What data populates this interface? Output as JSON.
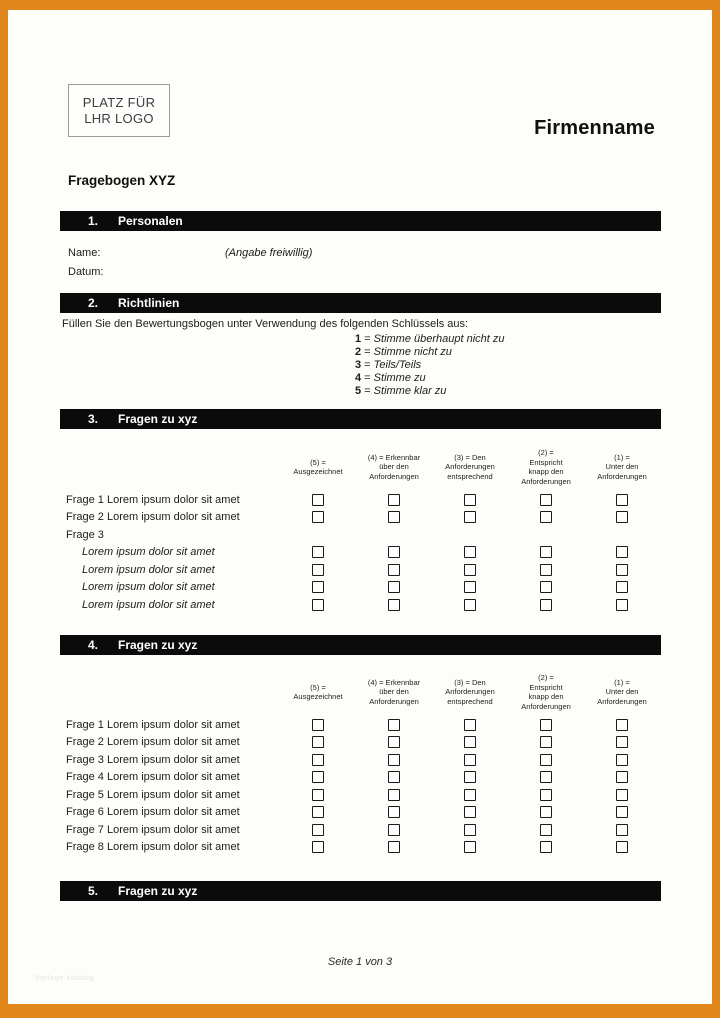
{
  "page": {
    "logo": {
      "line1": "PLATZ FÜR",
      "line2": "LHR LOGO"
    },
    "company_name": "Firmenname",
    "form_title": "Fragebogen XYZ",
    "footer_page_indicator": "Seite 1 von 3",
    "watermark": "Vorlage katalog",
    "colors": {
      "border_orange": "#E0861B",
      "section_bar": "#0B0B0B",
      "page_background": "#FDFDFA"
    }
  },
  "rating_columns": [
    {
      "lines": [
        "(5) =",
        "Ausgezeichnet"
      ]
    },
    {
      "lines": [
        "(4) = Erkennbar",
        "über den",
        "Anforderungen"
      ]
    },
    {
      "lines": [
        "(3) = Den",
        "Anforderungen",
        "entsprechend"
      ]
    },
    {
      "lines": [
        "(2) =",
        "Entspricht",
        "knapp den",
        "Anforderungen"
      ]
    },
    {
      "lines": [
        "(1) =",
        "Unter den",
        "Anforderungen"
      ]
    }
  ],
  "sections": {
    "personalen": {
      "number": "1.",
      "title": "Personalen",
      "fields": [
        {
          "label": "Name:",
          "note": "(Angabe freiwillig)"
        },
        {
          "label": "Datum:",
          "note": ""
        }
      ]
    },
    "richtlinien": {
      "number": "2.",
      "title": "Richtlinien",
      "instruction": "Füllen Sie den Bewertungsbogen unter Verwendung des folgenden Schlüssels aus:",
      "scale_key": [
        {
          "value": "1",
          "meaning": "Stimme überhaupt nicht zu"
        },
        {
          "value": "2",
          "meaning": "Stimme nicht zu"
        },
        {
          "value": "3",
          "meaning": "Teils/Teils"
        },
        {
          "value": "4",
          "meaning": "Stimme zu"
        },
        {
          "value": "5",
          "meaning": "Stimme klar zu"
        }
      ]
    },
    "fragen3": {
      "number": "3.",
      "title": "Fragen zu xyz",
      "rows": [
        {
          "label": "Frage 1 Lorem ipsum dolor sit amet",
          "style": "normal",
          "checkboxes": true
        },
        {
          "label": "Frage 2 Lorem ipsum dolor sit amet",
          "style": "normal",
          "checkboxes": true
        },
        {
          "label": "Frage 3",
          "style": "normal",
          "checkboxes": false
        },
        {
          "label": "Lorem ipsum dolor sit amet",
          "style": "sub",
          "checkboxes": true
        },
        {
          "label": "Lorem ipsum dolor sit amet",
          "style": "sub",
          "checkboxes": true
        },
        {
          "label": "Lorem ipsum dolor sit amet",
          "style": "sub",
          "checkboxes": true
        },
        {
          "label": "Lorem ipsum dolor sit amet",
          "style": "sub",
          "checkboxes": true
        }
      ]
    },
    "fragen4": {
      "number": "4.",
      "title": "Fragen zu xyz",
      "rows": [
        {
          "label": "Frage 1 Lorem ipsum dolor sit amet",
          "style": "normal",
          "checkboxes": true
        },
        {
          "label": "Frage 2 Lorem ipsum dolor sit amet",
          "style": "normal",
          "checkboxes": true
        },
        {
          "label": "Frage 3 Lorem ipsum dolor sit amet",
          "style": "normal",
          "checkboxes": true
        },
        {
          "label": "Frage 4 Lorem ipsum dolor sit amet",
          "style": "normal",
          "checkboxes": true
        },
        {
          "label": "Frage 5 Lorem ipsum dolor sit amet",
          "style": "normal",
          "checkboxes": true
        },
        {
          "label": "Frage 6 Lorem ipsum dolor sit amet",
          "style": "normal",
          "checkboxes": true
        },
        {
          "label": "Frage 7 Lorem ipsum dolor sit amet",
          "style": "normal",
          "checkboxes": true
        },
        {
          "label": "Frage 8 Lorem ipsum dolor sit amet",
          "style": "normal",
          "checkboxes": true
        }
      ]
    },
    "fragen5": {
      "number": "5.",
      "title": "Fragen zu xyz"
    }
  }
}
